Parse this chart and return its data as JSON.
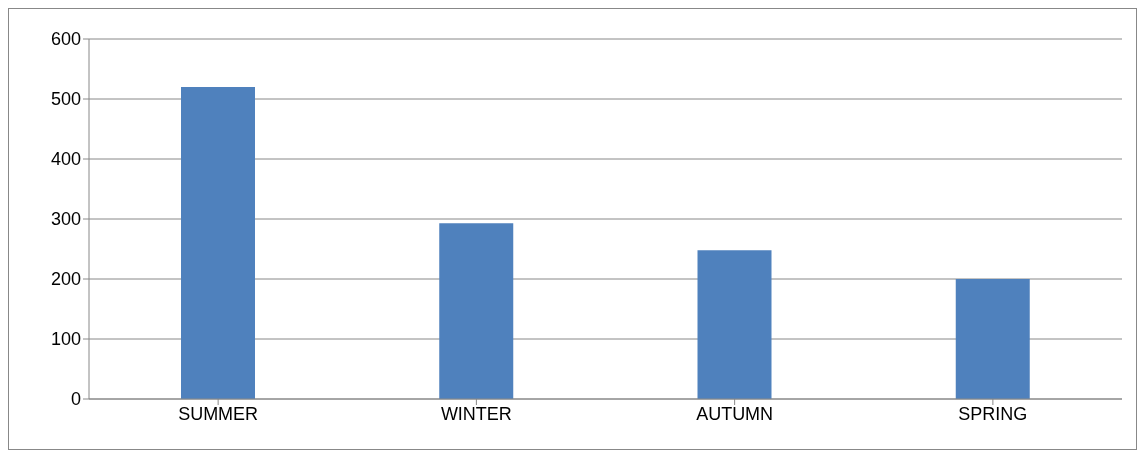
{
  "chart_data": {
    "type": "bar",
    "categories": [
      "SUMMER",
      "WINTER",
      "AUTUMN",
      "SPRING"
    ],
    "values": [
      520,
      293,
      248,
      200
    ],
    "color": "#4f81bd",
    "ylim": [
      0,
      600
    ],
    "yticks": [
      0,
      100,
      200,
      300,
      400,
      500,
      600
    ],
    "grid": "y"
  }
}
